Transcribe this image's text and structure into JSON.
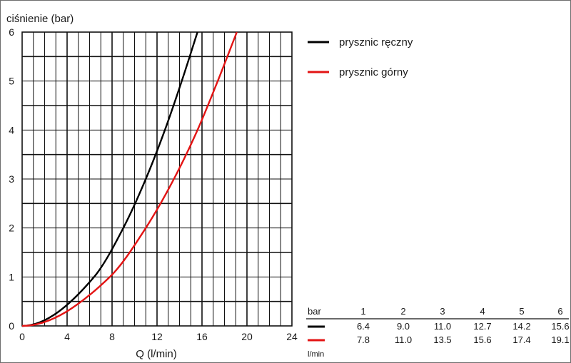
{
  "chart_data": {
    "type": "line",
    "ylabel": "ciśnienie (bar)",
    "xlabel": "Q (l/min)",
    "xlim": [
      0,
      24
    ],
    "ylim": [
      0,
      6
    ],
    "x_ticks": [
      0,
      4,
      8,
      12,
      16,
      20,
      24
    ],
    "y_ticks": [
      0,
      1,
      2,
      3,
      4,
      5,
      6
    ],
    "grid": true,
    "legend_position": "top-right, outside plot",
    "series": [
      {
        "name": "prysznic ręczny",
        "color": "#000000",
        "points": [
          [
            0,
            0
          ],
          [
            6.4,
            1
          ],
          [
            9.0,
            2
          ],
          [
            11.0,
            3
          ],
          [
            12.7,
            4
          ],
          [
            14.2,
            5
          ],
          [
            15.6,
            6
          ]
        ]
      },
      {
        "name": "prysznic górny",
        "color": "#e31414",
        "points": [
          [
            0,
            0
          ],
          [
            7.8,
            1
          ],
          [
            11.0,
            2
          ],
          [
            13.5,
            3
          ],
          [
            15.6,
            4
          ],
          [
            17.4,
            5
          ],
          [
            19.1,
            6
          ]
        ]
      }
    ],
    "table": {
      "header_label": "bar",
      "unit_label": "l/min",
      "pressures": [
        "1",
        "2",
        "3",
        "4",
        "5",
        "6"
      ],
      "rows": [
        {
          "series": "prysznic ręczny",
          "color": "#000000",
          "values": [
            "6.4",
            "9.0",
            "11.0",
            "12.7",
            "14.2",
            "15.6"
          ]
        },
        {
          "series": "prysznic górny",
          "color": "#e31414",
          "values": [
            "7.8",
            "11.0",
            "13.5",
            "15.6",
            "17.4",
            "19.1"
          ]
        }
      ]
    }
  }
}
